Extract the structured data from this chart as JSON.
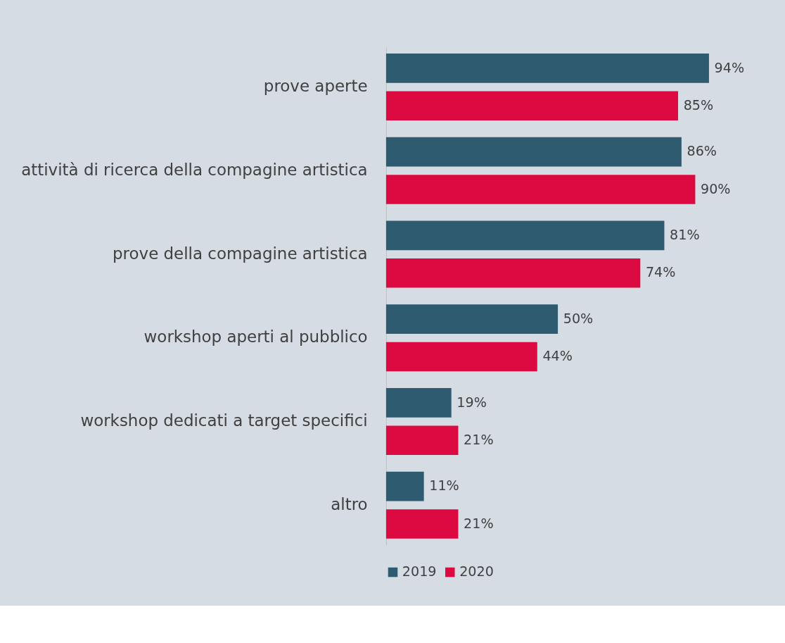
{
  "chart_data": {
    "type": "bar",
    "orientation": "horizontal",
    "categories": [
      "prove aperte",
      "attività di ricerca della compagine artistica",
      "prove della compagine artistica",
      "workshop aperti al pubblico",
      "workshop dedicati a target specifici",
      "altro"
    ],
    "series": [
      {
        "name": "2019",
        "color": "#2e5b70",
        "values": [
          94,
          86,
          81,
          50,
          19,
          11
        ],
        "value_labels": [
          "94%",
          "86%",
          "81%",
          "50%",
          "19%",
          "11%"
        ]
      },
      {
        "name": "2020",
        "color": "#dc0a40",
        "values": [
          85,
          90,
          74,
          44,
          21,
          21
        ],
        "value_labels": [
          "85%",
          "90%",
          "74%",
          "44%",
          "21%",
          "21%"
        ]
      }
    ],
    "legend": "bottom"
  }
}
